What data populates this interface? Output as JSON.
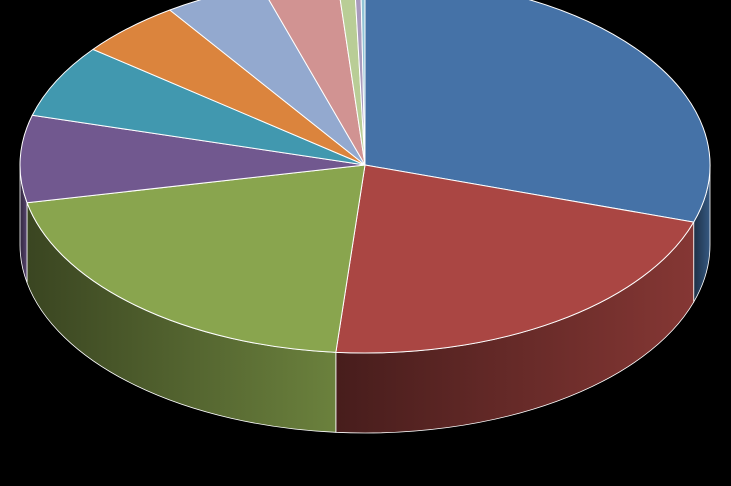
{
  "chart_data": {
    "type": "pie",
    "style": "3d",
    "title": "",
    "legend": "none",
    "slices": [
      {
        "value": 30.0,
        "color": "#4572A7"
      },
      {
        "value": 21.5,
        "color": "#AA4643"
      },
      {
        "value": 20.5,
        "color": "#89A54E"
      },
      {
        "value": 7.5,
        "color": "#71588F"
      },
      {
        "value": 6.3,
        "color": "#4198AF"
      },
      {
        "value": 4.9,
        "color": "#DB843D"
      },
      {
        "value": 4.7,
        "color": "#93A9CF"
      },
      {
        "value": 3.6,
        "color": "#D19392"
      },
      {
        "value": 0.8,
        "color": "#B9CD96"
      },
      {
        "value": 0.3,
        "color": "#A99BBD"
      },
      {
        "value": 0.2,
        "color": "#92C5D6"
      }
    ]
  }
}
